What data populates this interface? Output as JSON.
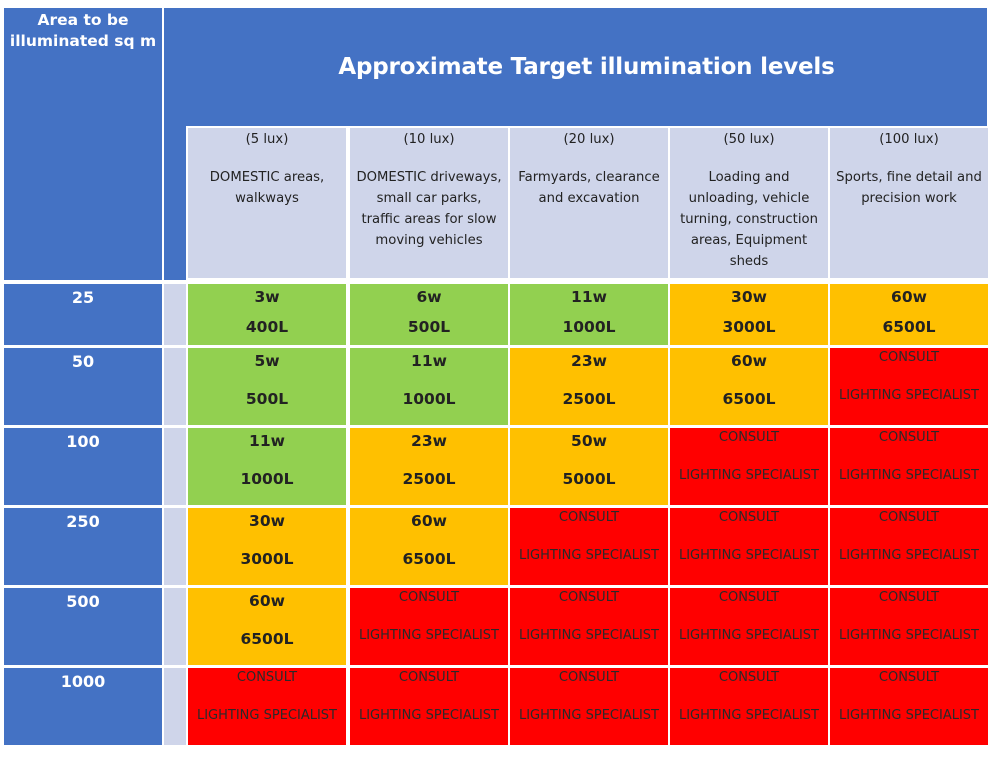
{
  "corner_label": "Area to be illuminated sq m",
  "title": "Approximate Target illumination levels",
  "columns": [
    {
      "lux": "(5 lux)",
      "desc": "DOMESTIC areas, walkways"
    },
    {
      "lux": "(10 lux)",
      "desc": "DOMESTIC driveways, small car parks, traffic areas for slow moving vehicles"
    },
    {
      "lux": "(20 lux)",
      "desc": "Farmyards, clearance and excavation"
    },
    {
      "lux": "(50 lux)",
      "desc": "Loading and unloading, vehicle turning, construction areas, Equipment sheds"
    },
    {
      "lux": "(100 lux)",
      "desc": "Sports, fine detail and precision work"
    }
  ],
  "rows": [
    {
      "area": "25",
      "cells": [
        {
          "status": "green",
          "watts": "3w",
          "lumens": "400L"
        },
        {
          "status": "green",
          "watts": "6w",
          "lumens": "500L"
        },
        {
          "status": "green",
          "watts": "11w",
          "lumens": "1000L"
        },
        {
          "status": "orange",
          "watts": "30w",
          "lumens": "3000L"
        },
        {
          "status": "orange",
          "watts": "60w",
          "lumens": "6500L"
        }
      ]
    },
    {
      "area": "50",
      "cells": [
        {
          "status": "green",
          "watts": "5w",
          "lumens": "500L"
        },
        {
          "status": "green",
          "watts": "11w",
          "lumens": "1000L"
        },
        {
          "status": "orange",
          "watts": "23w",
          "lumens": "2500L"
        },
        {
          "status": "orange",
          "watts": "60w",
          "lumens": "6500L"
        },
        {
          "status": "red",
          "line1": "CONSULT",
          "line2": "LIGHTING SPECIALIST"
        }
      ]
    },
    {
      "area": "100",
      "cells": [
        {
          "status": "green",
          "watts": "11w",
          "lumens": "1000L"
        },
        {
          "status": "orange",
          "watts": "23w",
          "lumens": "2500L"
        },
        {
          "status": "orange",
          "watts": "50w",
          "lumens": "5000L"
        },
        {
          "status": "red",
          "line1": "CONSULT",
          "line2": "LIGHTING SPECIALIST"
        },
        {
          "status": "red",
          "line1": "CONSULT",
          "line2": "LIGHTING SPECIALIST"
        }
      ]
    },
    {
      "area": "250",
      "cells": [
        {
          "status": "orange",
          "watts": "30w",
          "lumens": "3000L"
        },
        {
          "status": "orange",
          "watts": "60w",
          "lumens": "6500L"
        },
        {
          "status": "red",
          "line1": "CONSULT",
          "line2": "LIGHTING SPECIALIST"
        },
        {
          "status": "red",
          "line1": "CONSULT",
          "line2": "LIGHTING SPECIALIST"
        },
        {
          "status": "red",
          "line1": "CONSULT",
          "line2": "LIGHTING SPECIALIST"
        }
      ]
    },
    {
      "area": "500",
      "cells": [
        {
          "status": "orange",
          "watts": "60w",
          "lumens": "6500L"
        },
        {
          "status": "red",
          "line1": "CONSULT",
          "line2": "LIGHTING SPECIALIST"
        },
        {
          "status": "red",
          "line1": "CONSULT",
          "line2": "LIGHTING SPECIALIST"
        },
        {
          "status": "red",
          "line1": "CONSULT",
          "line2": "LIGHTING SPECIALIST"
        },
        {
          "status": "red",
          "line1": "CONSULT",
          "line2": "LIGHTING SPECIALIST"
        }
      ]
    },
    {
      "area": "1000",
      "cells": [
        {
          "status": "red",
          "line1": "CONSULT",
          "line2": "LIGHTING SPECIALIST"
        },
        {
          "status": "red",
          "line1": "CONSULT",
          "line2": "LIGHTING SPECIALIST"
        },
        {
          "status": "red",
          "line1": "CONSULT",
          "line2": "LIGHTING SPECIALIST"
        },
        {
          "status": "red",
          "line1": "CONSULT",
          "line2": "LIGHTING SPECIALIST"
        },
        {
          "status": "red",
          "line1": "CONSULT",
          "line2": "LIGHTING SPECIALIST"
        }
      ]
    }
  ],
  "colors": {
    "header_blue": "#4472c4",
    "header_lavender": "#cfd5ea",
    "green": "#92d050",
    "orange": "#ffc000",
    "red": "#ff0000"
  }
}
